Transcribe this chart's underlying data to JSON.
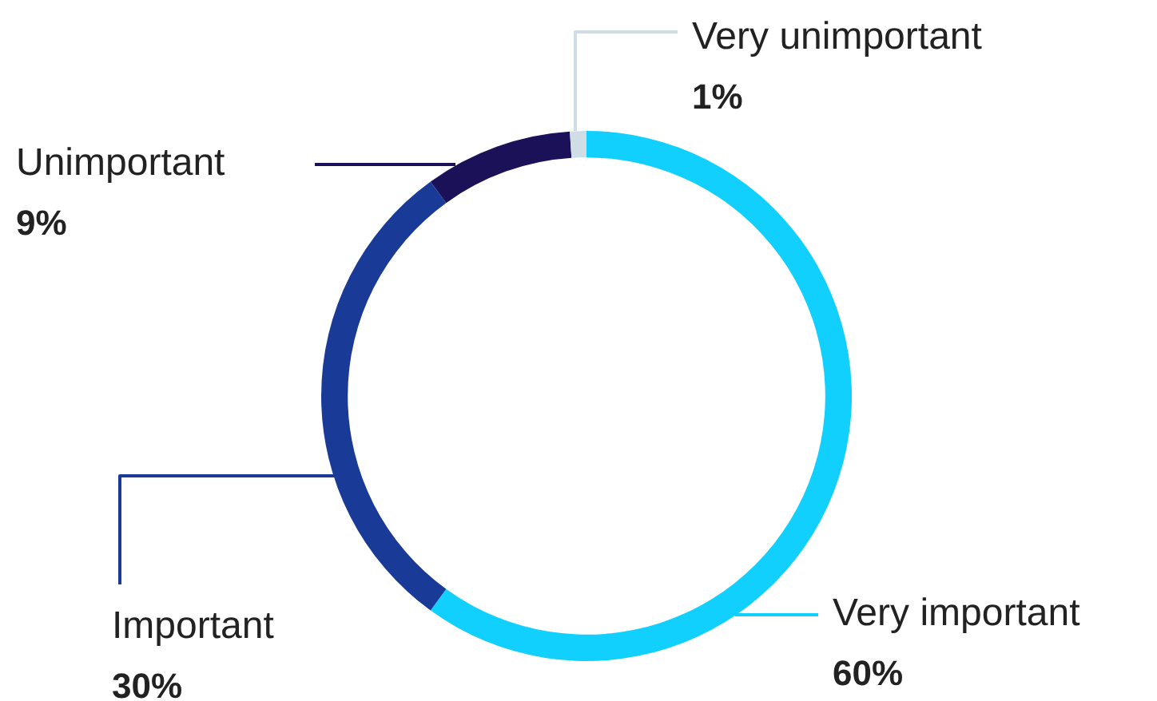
{
  "chart_data": {
    "type": "donut",
    "categories": [
      "Very important",
      "Important",
      "Unimportant",
      "Very unimportant"
    ],
    "values": [
      60,
      30,
      9,
      1
    ],
    "colors": [
      "#11d0fe",
      "#1a3a98",
      "#1b1158",
      "#cfdde6"
    ],
    "value_labels": [
      "60%",
      "30%",
      "9%",
      "1%"
    ]
  }
}
